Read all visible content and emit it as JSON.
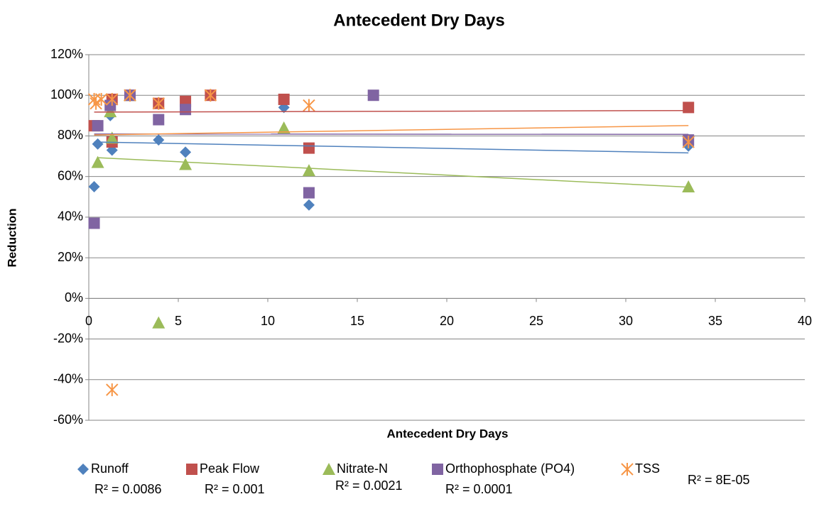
{
  "chart_data": {
    "type": "scatter",
    "title": "Antecedent Dry Days",
    "x_label": "Antecedent Dry Days",
    "y_label": "Reduction",
    "xlim": [
      0,
      40
    ],
    "xticks": [
      0,
      5,
      10,
      15,
      20,
      25,
      30,
      35,
      40
    ],
    "ylim": [
      -60,
      120
    ],
    "yticks": [
      {
        "value": -60,
        "label": "-60%"
      },
      {
        "value": -40,
        "label": "-40%"
      },
      {
        "value": -20,
        "label": "-20%"
      },
      {
        "value": 0,
        "label": "0%"
      },
      {
        "value": 20,
        "label": "20%"
      },
      {
        "value": 40,
        "label": "40%"
      },
      {
        "value": 60,
        "label": "60%"
      },
      {
        "value": 80,
        "label": "80%"
      },
      {
        "value": 100,
        "label": "100%"
      },
      {
        "value": 120,
        "label": "120%"
      }
    ],
    "grid": true,
    "legend": "bottom",
    "trendline": "linear",
    "series": [
      {
        "name": "Runoff",
        "color": "#4f81bd",
        "marker": "diamond",
        "trendline_label": "R² = 0.0086",
        "x": [
          0.3,
          0.5,
          1.2,
          1.3,
          2.3,
          3.9,
          5.4,
          10.9,
          12.3,
          33.5
        ],
        "values": [
          55,
          76,
          90,
          73,
          100,
          78,
          72,
          94,
          46,
          75
        ]
      },
      {
        "name": "Peak Flow",
        "color": "#c0504d",
        "marker": "square",
        "trendline_label": "R² = 0.001",
        "x": [
          0.3,
          1.3,
          1.3,
          2.3,
          3.9,
          5.4,
          6.8,
          10.9,
          12.3,
          33.5
        ],
        "values": [
          85,
          77,
          98,
          100,
          96,
          97,
          100,
          98,
          74,
          94
        ]
      },
      {
        "name": "Nitrate-N",
        "color": "#9bbb59",
        "marker": "triangle",
        "trendline_label": "R² = 0.0021",
        "x": [
          0.5,
          1.2,
          1.3,
          2.3,
          3.9,
          5.4,
          10.9,
          12.3,
          33.5
        ],
        "values": [
          67,
          92,
          79,
          100,
          -12,
          66,
          84,
          63,
          55
        ]
      },
      {
        "name": "Orthophosphate (PO4)",
        "color": "#8064a2",
        "marker": "square",
        "trendline_label": "R² = 0.0001",
        "x": [
          0.3,
          0.5,
          1.2,
          2.3,
          3.9,
          5.4,
          12.3,
          15.9,
          33.5
        ],
        "values": [
          37,
          85,
          95,
          100,
          88,
          93,
          52,
          100,
          78
        ]
      },
      {
        "name": "TSS",
        "color": "#f79646",
        "marker": "asterisk",
        "trendline_label": "R² = 8E-05",
        "x": [
          0.3,
          0.4,
          0.7,
          1.3,
          1.3,
          2.3,
          3.9,
          6.8,
          12.3,
          33.5
        ],
        "values": [
          98,
          96,
          98,
          98,
          -45,
          100,
          96,
          100,
          95,
          77
        ]
      }
    ]
  }
}
